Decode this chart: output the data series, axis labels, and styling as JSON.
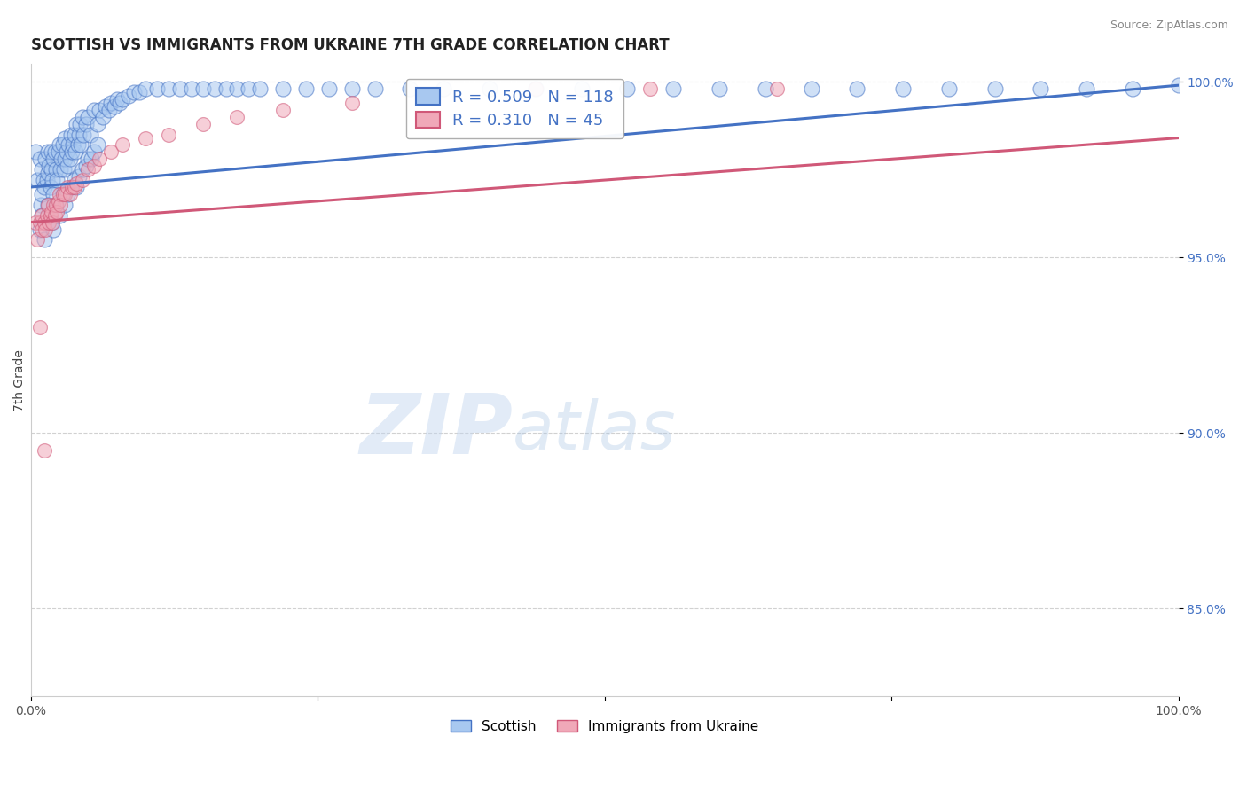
{
  "title": "SCOTTISH VS IMMIGRANTS FROM UKRAINE 7TH GRADE CORRELATION CHART",
  "source": "Source: ZipAtlas.com",
  "xlabel": "",
  "ylabel": "7th Grade",
  "xlim": [
    0.0,
    1.0
  ],
  "ylim": [
    0.825,
    1.005
  ],
  "yticks": [
    0.85,
    0.9,
    0.95,
    1.0
  ],
  "ytick_labels": [
    "85.0%",
    "90.0%",
    "95.0%",
    "100.0%"
  ],
  "blue_R": 0.509,
  "blue_N": 118,
  "pink_R": 0.31,
  "pink_N": 45,
  "blue_color": "#A8C8F0",
  "pink_color": "#F0A8B8",
  "blue_line_color": "#4472C4",
  "pink_line_color": "#D05878",
  "blue_line_start_y": 0.97,
  "blue_line_end_y": 0.999,
  "pink_line_start_y": 0.96,
  "pink_line_end_y": 0.984,
  "watermark_zip": "ZIP",
  "watermark_atlas": "atlas",
  "background_color": "#FFFFFF",
  "grid_color": "#CCCCCC",
  "scatter_blue_x": [
    0.004,
    0.006,
    0.008,
    0.009,
    0.01,
    0.01,
    0.011,
    0.012,
    0.013,
    0.014,
    0.015,
    0.015,
    0.016,
    0.017,
    0.018,
    0.018,
    0.019,
    0.02,
    0.02,
    0.021,
    0.022,
    0.023,
    0.024,
    0.025,
    0.026,
    0.027,
    0.028,
    0.029,
    0.03,
    0.03,
    0.031,
    0.032,
    0.033,
    0.034,
    0.035,
    0.036,
    0.037,
    0.038,
    0.039,
    0.04,
    0.041,
    0.042,
    0.043,
    0.044,
    0.045,
    0.046,
    0.048,
    0.05,
    0.052,
    0.055,
    0.058,
    0.06,
    0.063,
    0.065,
    0.068,
    0.07,
    0.073,
    0.075,
    0.078,
    0.08,
    0.085,
    0.09,
    0.095,
    0.1,
    0.11,
    0.12,
    0.13,
    0.14,
    0.15,
    0.16,
    0.17,
    0.18,
    0.19,
    0.2,
    0.22,
    0.24,
    0.26,
    0.28,
    0.3,
    0.33,
    0.36,
    0.4,
    0.44,
    0.48,
    0.52,
    0.56,
    0.6,
    0.64,
    0.68,
    0.72,
    0.76,
    0.8,
    0.84,
    0.88,
    0.92,
    0.96,
    1.0,
    0.008,
    0.01,
    0.012,
    0.015,
    0.018,
    0.02,
    0.022,
    0.025,
    0.028,
    0.03,
    0.032,
    0.035,
    0.038,
    0.04,
    0.042,
    0.045,
    0.048,
    0.05,
    0.053,
    0.055,
    0.058
  ],
  "scatter_blue_y": [
    0.98,
    0.972,
    0.978,
    0.965,
    0.975,
    0.968,
    0.972,
    0.97,
    0.978,
    0.972,
    0.98,
    0.974,
    0.976,
    0.97,
    0.98,
    0.975,
    0.972,
    0.978,
    0.968,
    0.98,
    0.975,
    0.972,
    0.98,
    0.982,
    0.975,
    0.978,
    0.982,
    0.975,
    0.984,
    0.978,
    0.98,
    0.976,
    0.982,
    0.978,
    0.985,
    0.98,
    0.982,
    0.985,
    0.98,
    0.988,
    0.982,
    0.985,
    0.988,
    0.982,
    0.99,
    0.985,
    0.988,
    0.99,
    0.985,
    0.992,
    0.988,
    0.992,
    0.99,
    0.993,
    0.992,
    0.994,
    0.993,
    0.995,
    0.994,
    0.995,
    0.996,
    0.997,
    0.997,
    0.998,
    0.998,
    0.998,
    0.998,
    0.998,
    0.998,
    0.998,
    0.998,
    0.998,
    0.998,
    0.998,
    0.998,
    0.998,
    0.998,
    0.998,
    0.998,
    0.998,
    0.998,
    0.998,
    0.998,
    0.998,
    0.998,
    0.998,
    0.998,
    0.998,
    0.998,
    0.998,
    0.998,
    0.998,
    0.998,
    0.998,
    0.998,
    0.998,
    0.999,
    0.958,
    0.962,
    0.955,
    0.965,
    0.96,
    0.958,
    0.965,
    0.962,
    0.968,
    0.965,
    0.968,
    0.97,
    0.972,
    0.97,
    0.973,
    0.975,
    0.976,
    0.978,
    0.978,
    0.98,
    0.982
  ],
  "scatter_pink_x": [
    0.004,
    0.006,
    0.008,
    0.01,
    0.01,
    0.012,
    0.013,
    0.014,
    0.015,
    0.016,
    0.017,
    0.018,
    0.019,
    0.02,
    0.021,
    0.022,
    0.023,
    0.024,
    0.025,
    0.026,
    0.028,
    0.03,
    0.032,
    0.034,
    0.036,
    0.038,
    0.04,
    0.045,
    0.05,
    0.055,
    0.06,
    0.07,
    0.08,
    0.1,
    0.12,
    0.15,
    0.18,
    0.22,
    0.28,
    0.35,
    0.44,
    0.54,
    0.65,
    0.008,
    0.012
  ],
  "scatter_pink_y": [
    0.96,
    0.955,
    0.96,
    0.962,
    0.958,
    0.96,
    0.958,
    0.962,
    0.965,
    0.96,
    0.962,
    0.963,
    0.96,
    0.965,
    0.962,
    0.965,
    0.963,
    0.966,
    0.968,
    0.965,
    0.968,
    0.968,
    0.97,
    0.968,
    0.97,
    0.97,
    0.971,
    0.972,
    0.975,
    0.976,
    0.978,
    0.98,
    0.982,
    0.984,
    0.985,
    0.988,
    0.99,
    0.992,
    0.994,
    0.996,
    0.998,
    0.998,
    0.998,
    0.93,
    0.895
  ]
}
